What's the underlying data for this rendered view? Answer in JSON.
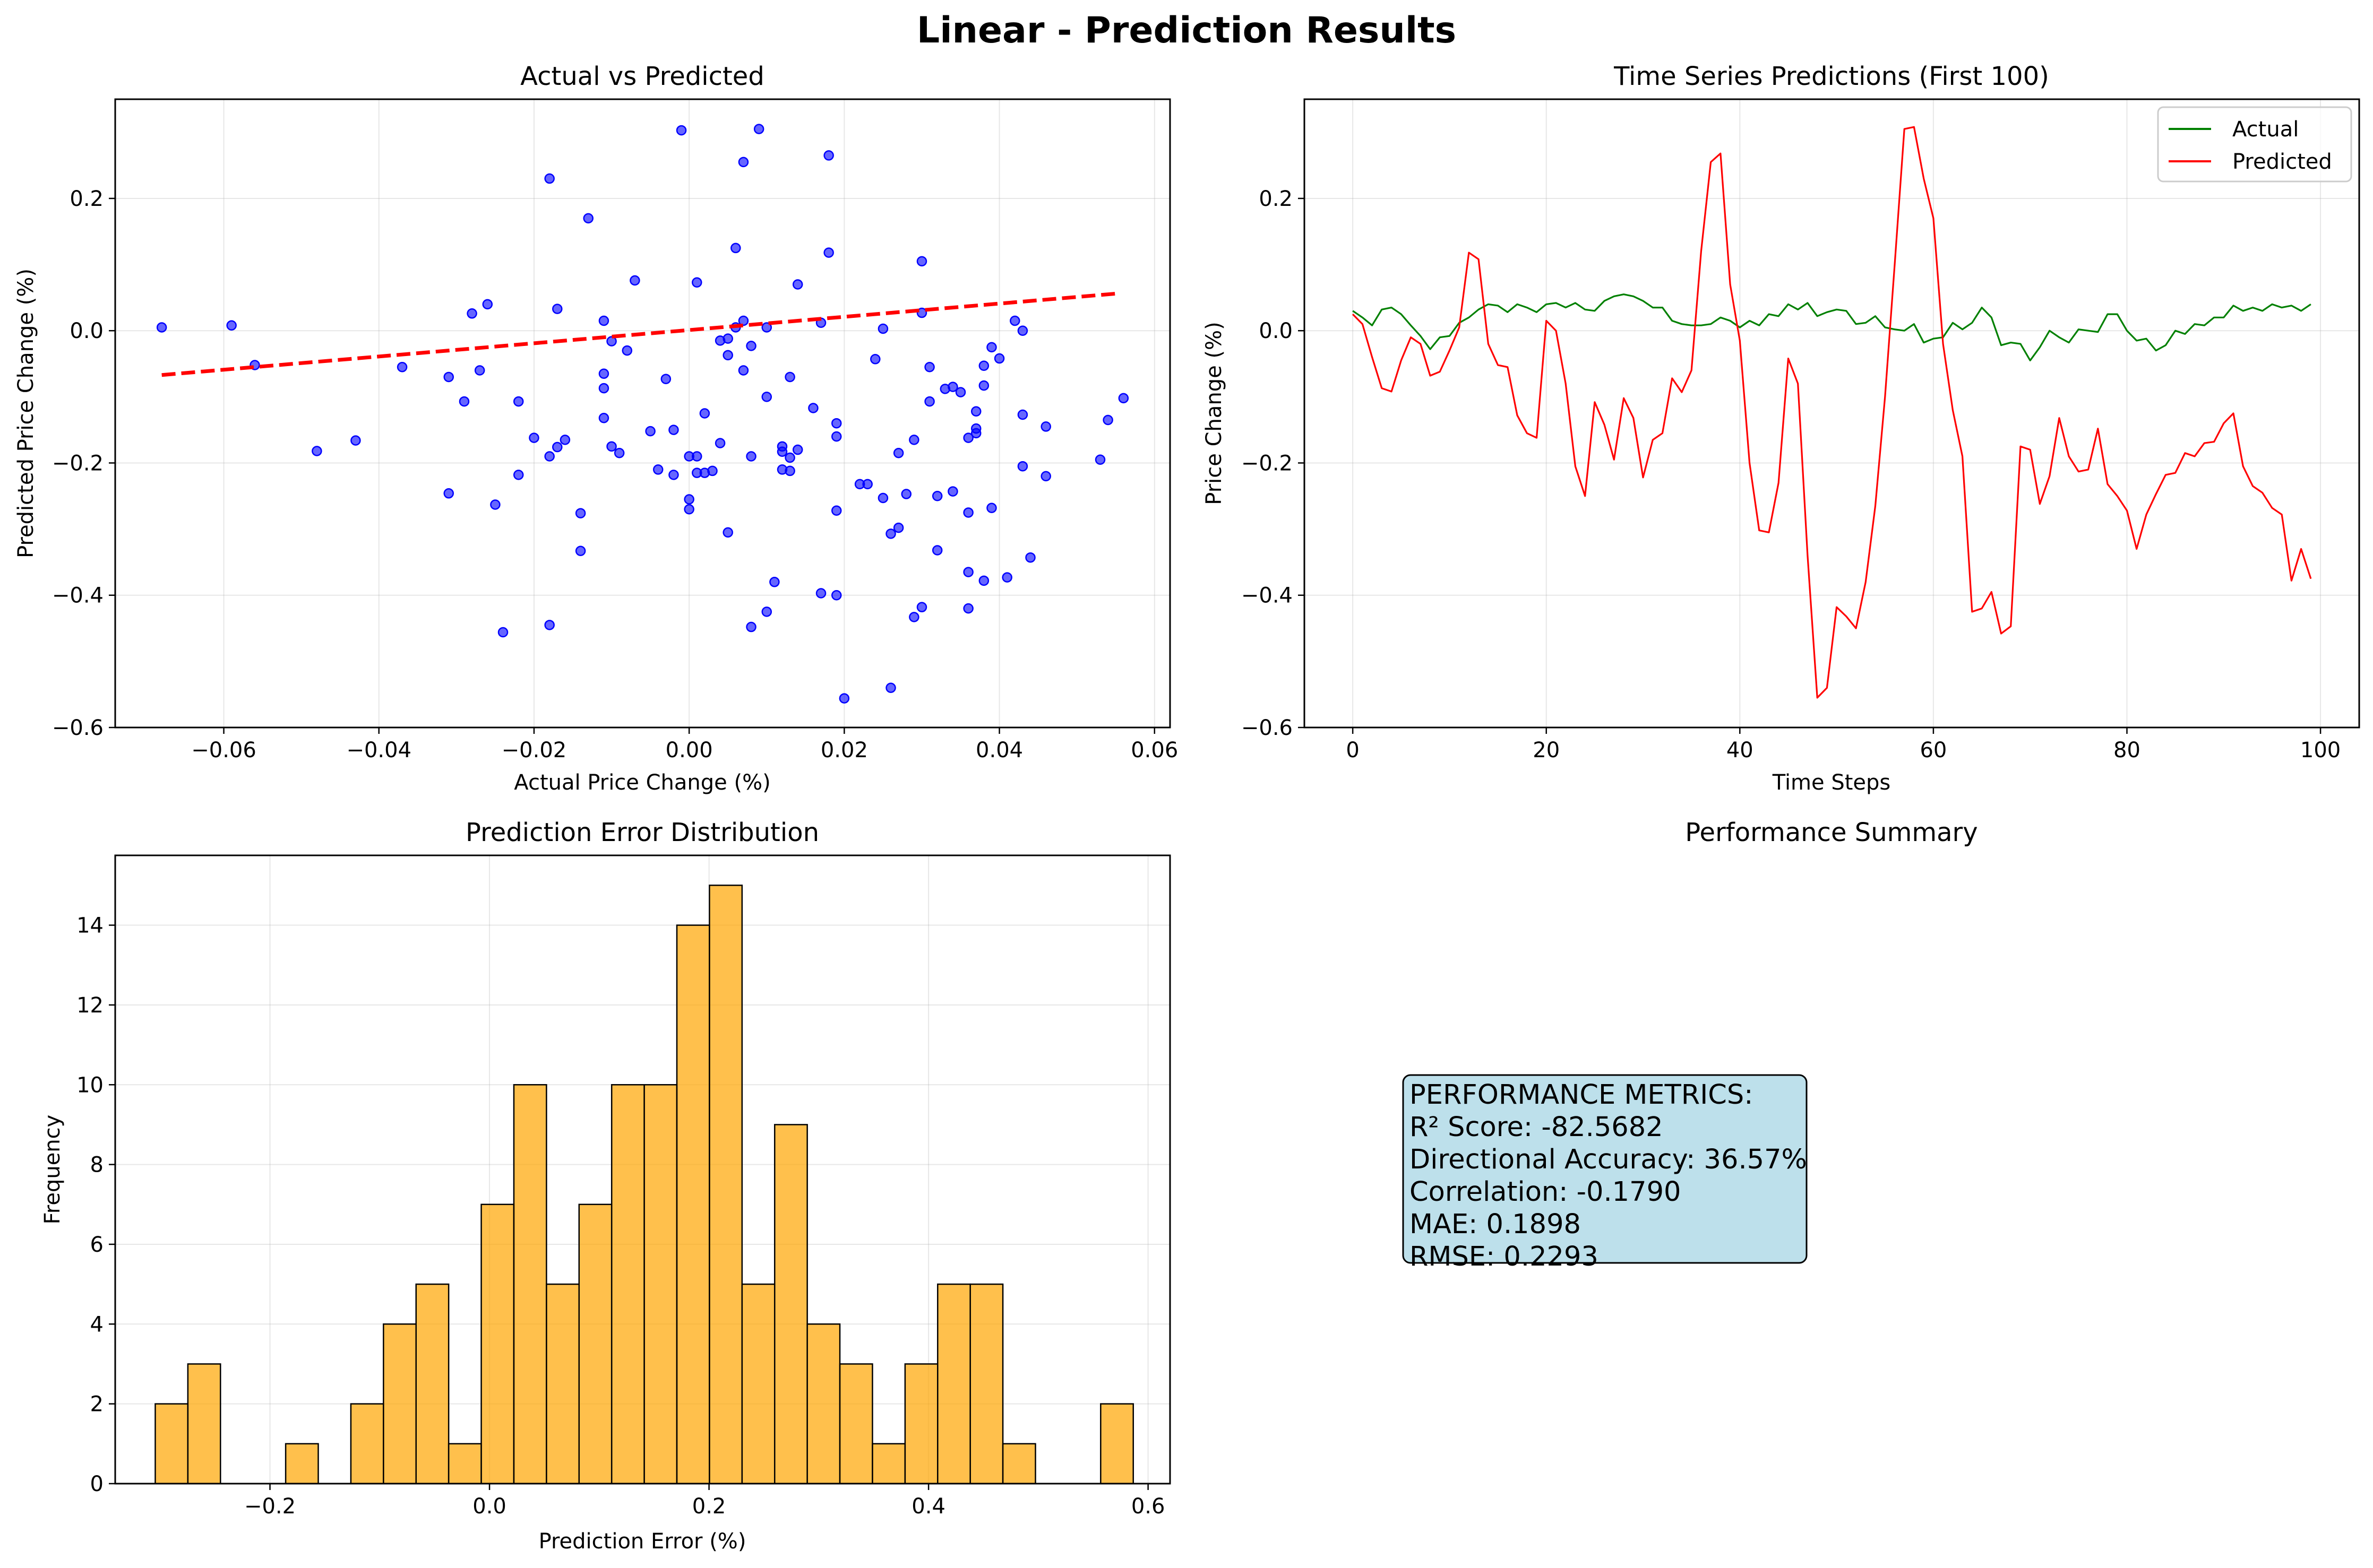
{
  "suptitle": "Linear - Prediction Results",
  "chart_data": [
    {
      "type": "scatter",
      "title": "Actual vs Predicted",
      "xlabel": "Actual Price Change (%)",
      "ylabel": "Predicted Price Change (%)",
      "xlim": [
        -0.074,
        0.062
      ],
      "ylim": [
        -0.6,
        0.35
      ],
      "xticks": [
        -0.06,
        -0.04,
        -0.02,
        0.0,
        0.02,
        0.04,
        0.06
      ],
      "xtick_labels": [
        "−0.06",
        "−0.04",
        "−0.02",
        "0.00",
        "0.02",
        "0.04",
        "0.06"
      ],
      "yticks": [
        -0.6,
        -0.4,
        -0.2,
        0.0,
        0.2
      ],
      "ytick_labels": [
        "−0.6",
        "−0.4",
        "−0.2",
        "0.0",
        "0.2"
      ],
      "grid": true,
      "point_color": "#0000ff",
      "fit_color": "#ff0000",
      "fit_line": {
        "x": [
          -0.068,
          0.055
        ],
        "y": [
          -0.067,
          0.056
        ]
      },
      "points": [
        [
          -0.068,
          0.005
        ],
        [
          -0.059,
          0.008
        ],
        [
          -0.056,
          -0.052
        ],
        [
          -0.048,
          -0.182
        ],
        [
          -0.043,
          -0.166
        ],
        [
          -0.037,
          -0.055
        ],
        [
          -0.031,
          -0.07
        ],
        [
          -0.031,
          -0.246
        ],
        [
          -0.029,
          -0.107
        ],
        [
          -0.028,
          0.026
        ],
        [
          -0.027,
          -0.06
        ],
        [
          -0.026,
          0.04
        ],
        [
          -0.025,
          -0.263
        ],
        [
          -0.024,
          -0.456
        ],
        [
          -0.022,
          -0.107
        ],
        [
          -0.022,
          -0.218
        ],
        [
          -0.02,
          -0.162
        ],
        [
          -0.018,
          0.23
        ],
        [
          -0.018,
          -0.19
        ],
        [
          -0.018,
          -0.445
        ],
        [
          -0.017,
          -0.176
        ],
        [
          -0.017,
          0.033
        ],
        [
          -0.016,
          -0.165
        ],
        [
          -0.014,
          -0.333
        ],
        [
          -0.014,
          -0.276
        ],
        [
          -0.013,
          0.17
        ],
        [
          -0.011,
          0.015
        ],
        [
          -0.011,
          -0.087
        ],
        [
          -0.011,
          -0.065
        ],
        [
          -0.011,
          -0.132
        ],
        [
          -0.01,
          -0.175
        ],
        [
          -0.01,
          -0.016
        ],
        [
          -0.009,
          -0.185
        ],
        [
          -0.008,
          -0.03
        ],
        [
          -0.007,
          0.076
        ],
        [
          -0.005,
          -0.152
        ],
        [
          -0.004,
          -0.21
        ],
        [
          -0.003,
          -0.073
        ],
        [
          -0.002,
          -0.15
        ],
        [
          -0.002,
          -0.218
        ],
        [
          -0.001,
          0.303
        ],
        [
          0.0,
          -0.19
        ],
        [
          0.0,
          -0.255
        ],
        [
          0.0,
          -0.27
        ],
        [
          0.001,
          -0.215
        ],
        [
          0.001,
          -0.19
        ],
        [
          0.001,
          0.073
        ],
        [
          0.002,
          -0.125
        ],
        [
          0.002,
          -0.215
        ],
        [
          0.003,
          -0.212
        ],
        [
          0.004,
          -0.015
        ],
        [
          0.004,
          -0.17
        ],
        [
          0.005,
          -0.037
        ],
        [
          0.005,
          -0.305
        ],
        [
          0.005,
          -0.012
        ],
        [
          0.006,
          0.125
        ],
        [
          0.006,
          0.005
        ],
        [
          0.007,
          0.255
        ],
        [
          0.007,
          0.015
        ],
        [
          0.007,
          -0.06
        ],
        [
          0.008,
          -0.19
        ],
        [
          0.008,
          -0.448
        ],
        [
          0.008,
          -0.023
        ],
        [
          0.009,
          0.305
        ],
        [
          0.01,
          0.005
        ],
        [
          0.01,
          -0.1
        ],
        [
          0.01,
          -0.425
        ],
        [
          0.011,
          -0.38
        ],
        [
          0.012,
          -0.21
        ],
        [
          0.012,
          -0.175
        ],
        [
          0.012,
          -0.183
        ],
        [
          0.013,
          -0.192
        ],
        [
          0.013,
          -0.07
        ],
        [
          0.013,
          -0.212
        ],
        [
          0.014,
          -0.18
        ],
        [
          0.014,
          0.07
        ],
        [
          0.016,
          -0.117
        ],
        [
          0.017,
          0.012
        ],
        [
          0.017,
          -0.397
        ],
        [
          0.018,
          0.265
        ],
        [
          0.018,
          0.118
        ],
        [
          0.019,
          -0.14
        ],
        [
          0.019,
          -0.16
        ],
        [
          0.019,
          -0.4
        ],
        [
          0.019,
          -0.272
        ],
        [
          0.02,
          -0.556
        ],
        [
          0.022,
          -0.232
        ],
        [
          0.023,
          -0.232
        ],
        [
          0.024,
          -0.043
        ],
        [
          0.025,
          0.003
        ],
        [
          0.025,
          -0.253
        ],
        [
          0.026,
          -0.54
        ],
        [
          0.026,
          -0.307
        ],
        [
          0.027,
          -0.185
        ],
        [
          0.027,
          -0.298
        ],
        [
          0.028,
          -0.247
        ],
        [
          0.029,
          -0.165
        ],
        [
          0.029,
          -0.433
        ],
        [
          0.03,
          -0.418
        ],
        [
          0.03,
          0.027
        ],
        [
          0.03,
          0.105
        ],
        [
          0.031,
          -0.107
        ],
        [
          0.031,
          -0.055
        ],
        [
          0.032,
          -0.25
        ],
        [
          0.032,
          -0.332
        ],
        [
          0.033,
          -0.088
        ],
        [
          0.034,
          -0.085
        ],
        [
          0.034,
          -0.243
        ],
        [
          0.035,
          -0.093
        ],
        [
          0.036,
          -0.275
        ],
        [
          0.036,
          -0.162
        ],
        [
          0.036,
          -0.365
        ],
        [
          0.036,
          -0.42
        ],
        [
          0.037,
          -0.148
        ],
        [
          0.037,
          -0.155
        ],
        [
          0.037,
          -0.122
        ],
        [
          0.038,
          -0.378
        ],
        [
          0.038,
          -0.083
        ],
        [
          0.038,
          -0.053
        ],
        [
          0.039,
          -0.025
        ],
        [
          0.039,
          -0.268
        ],
        [
          0.04,
          -0.042
        ],
        [
          0.041,
          -0.373
        ],
        [
          0.042,
          0.015
        ],
        [
          0.043,
          -0.127
        ],
        [
          0.043,
          -0.205
        ],
        [
          0.043,
          0.0
        ],
        [
          0.044,
          -0.343
        ],
        [
          0.046,
          -0.145
        ],
        [
          0.046,
          -0.22
        ],
        [
          0.053,
          -0.195
        ],
        [
          0.054,
          -0.135
        ],
        [
          0.056,
          -0.102
        ]
      ]
    },
    {
      "type": "line",
      "title": "Time Series Predictions (First 100)",
      "xlabel": "Time Steps",
      "ylabel": "Price Change (%)",
      "xlim": [
        -5,
        104
      ],
      "ylim": [
        -0.6,
        0.35
      ],
      "xticks": [
        0,
        20,
        40,
        60,
        80,
        100
      ],
      "xtick_labels": [
        "0",
        "20",
        "40",
        "60",
        "80",
        "100"
      ],
      "yticks": [
        -0.6,
        -0.4,
        -0.2,
        0.0,
        0.2
      ],
      "ytick_labels": [
        "−0.6",
        "−0.4",
        "−0.2",
        "0.0",
        "0.2"
      ],
      "grid": true,
      "legend_position": "top-right",
      "x": [
        0,
        1,
        2,
        3,
        4,
        5,
        6,
        7,
        8,
        9,
        10,
        11,
        12,
        13,
        14,
        15,
        16,
        17,
        18,
        19,
        20,
        21,
        22,
        23,
        24,
        25,
        26,
        27,
        28,
        29,
        30,
        31,
        32,
        33,
        34,
        35,
        36,
        37,
        38,
        39,
        40,
        41,
        42,
        43,
        44,
        45,
        46,
        47,
        48,
        49,
        50,
        51,
        52,
        53,
        54,
        55,
        56,
        57,
        58,
        59,
        60,
        61,
        62,
        63,
        64,
        65,
        66,
        67,
        68,
        69,
        70,
        71,
        72,
        73,
        74,
        75,
        76,
        77,
        78,
        79,
        80,
        81,
        82,
        83,
        84,
        85,
        86,
        87,
        88,
        89,
        90,
        91,
        92,
        93,
        94,
        95,
        96,
        97,
        98,
        99
      ],
      "series": [
        {
          "name": "Actual",
          "color": "#008000",
          "values": [
            0.03,
            0.02,
            0.008,
            0.032,
            0.035,
            0.025,
            0.008,
            -0.008,
            -0.028,
            -0.01,
            -0.008,
            0.012,
            0.02,
            0.032,
            0.04,
            0.038,
            0.028,
            0.04,
            0.035,
            0.028,
            0.04,
            0.042,
            0.035,
            0.042,
            0.032,
            0.03,
            0.045,
            0.052,
            0.055,
            0.052,
            0.045,
            0.035,
            0.035,
            0.015,
            0.01,
            0.008,
            0.008,
            0.01,
            0.02,
            0.015,
            0.005,
            0.015,
            0.008,
            0.025,
            0.022,
            0.04,
            0.032,
            0.042,
            0.022,
            0.028,
            0.032,
            0.03,
            0.01,
            0.012,
            0.022,
            0.005,
            0.002,
            0.0,
            0.01,
            -0.018,
            -0.012,
            -0.01,
            0.012,
            0.002,
            0.012,
            0.035,
            0.02,
            -0.022,
            -0.018,
            -0.02,
            -0.045,
            -0.025,
            0.0,
            -0.01,
            -0.018,
            0.002,
            0.0,
            -0.002,
            0.025,
            0.025,
            0.0,
            -0.015,
            -0.012,
            -0.03,
            -0.022,
            0.0,
            -0.005,
            0.01,
            0.008,
            0.02,
            0.02,
            0.038,
            0.03,
            0.035,
            0.03,
            0.04,
            0.035,
            0.038,
            0.03,
            0.04
          ]
        },
        {
          "name": "Predicted",
          "color": "#ff0000",
          "values": [
            0.025,
            0.01,
            -0.04,
            -0.087,
            -0.092,
            -0.045,
            -0.01,
            -0.02,
            -0.068,
            -0.062,
            -0.03,
            0.005,
            0.118,
            0.108,
            -0.02,
            -0.052,
            -0.055,
            -0.128,
            -0.155,
            -0.162,
            0.015,
            0.0,
            -0.08,
            -0.205,
            -0.25,
            -0.108,
            -0.142,
            -0.195,
            -0.102,
            -0.132,
            -0.222,
            -0.165,
            -0.155,
            -0.072,
            -0.093,
            -0.06,
            0.12,
            0.255,
            0.268,
            0.07,
            -0.015,
            -0.2,
            -0.302,
            -0.305,
            -0.23,
            -0.042,
            -0.08,
            -0.34,
            -0.555,
            -0.54,
            -0.418,
            -0.432,
            -0.45,
            -0.38,
            -0.265,
            -0.1,
            0.1,
            0.305,
            0.308,
            0.23,
            0.17,
            -0.02,
            -0.12,
            -0.19,
            -0.425,
            -0.42,
            -0.395,
            -0.458,
            -0.447,
            -0.175,
            -0.18,
            -0.262,
            -0.22,
            -0.132,
            -0.19,
            -0.213,
            -0.21,
            -0.148,
            -0.232,
            -0.25,
            -0.272,
            -0.33,
            -0.278,
            -0.247,
            -0.218,
            -0.215,
            -0.185,
            -0.19,
            -0.17,
            -0.168,
            -0.14,
            -0.125,
            -0.205,
            -0.235,
            -0.245,
            -0.268,
            -0.278,
            -0.378,
            -0.33,
            -0.375
          ]
        }
      ]
    },
    {
      "type": "bar",
      "title": "Prediction Error Distribution",
      "xlabel": "Prediction Error (%)",
      "ylabel": "Frequency",
      "xlim": [
        -0.341,
        0.62
      ],
      "ylim": [
        0,
        15.75
      ],
      "xticks": [
        -0.2,
        0.0,
        0.2,
        0.4,
        0.6
      ],
      "xtick_labels": [
        "−0.2",
        "0.0",
        "0.2",
        "0.4",
        "0.6"
      ],
      "yticks": [
        0,
        2,
        4,
        6,
        8,
        10,
        12,
        14
      ],
      "ytick_labels": [
        "0",
        "2",
        "4",
        "6",
        "8",
        "10",
        "12",
        "14"
      ],
      "grid": true,
      "bar_color": "#ffa500",
      "bin_edges": [
        -0.3045,
        -0.2748,
        -0.2451,
        -0.2154,
        -0.1857,
        -0.156,
        -0.1263,
        -0.0966,
        -0.0669,
        -0.0372,
        -0.0075,
        0.0222,
        0.0519,
        0.0816,
        0.1113,
        0.141,
        0.1707,
        0.2004,
        0.2301,
        0.2598,
        0.2895,
        0.3192,
        0.3489,
        0.3786,
        0.4083,
        0.438,
        0.4677,
        0.4974,
        0.5271,
        0.5568,
        0.5865
      ],
      "values": [
        2,
        3,
        0,
        0,
        1,
        0,
        2,
        4,
        5,
        1,
        7,
        10,
        5,
        7,
        10,
        10,
        14,
        15,
        5,
        9,
        4,
        3,
        1,
        3,
        5,
        5,
        1,
        0,
        0,
        2
      ]
    }
  ],
  "summary": {
    "title": "Performance Summary",
    "lines": [
      "PERFORMANCE METRICS:",
      "R² Score: -82.5682",
      "Directional Accuracy: 36.57%",
      "Correlation: -0.1790",
      "MAE: 0.1898",
      "RMSE: 0.2293"
    ],
    "box_color": "#add8e6"
  }
}
